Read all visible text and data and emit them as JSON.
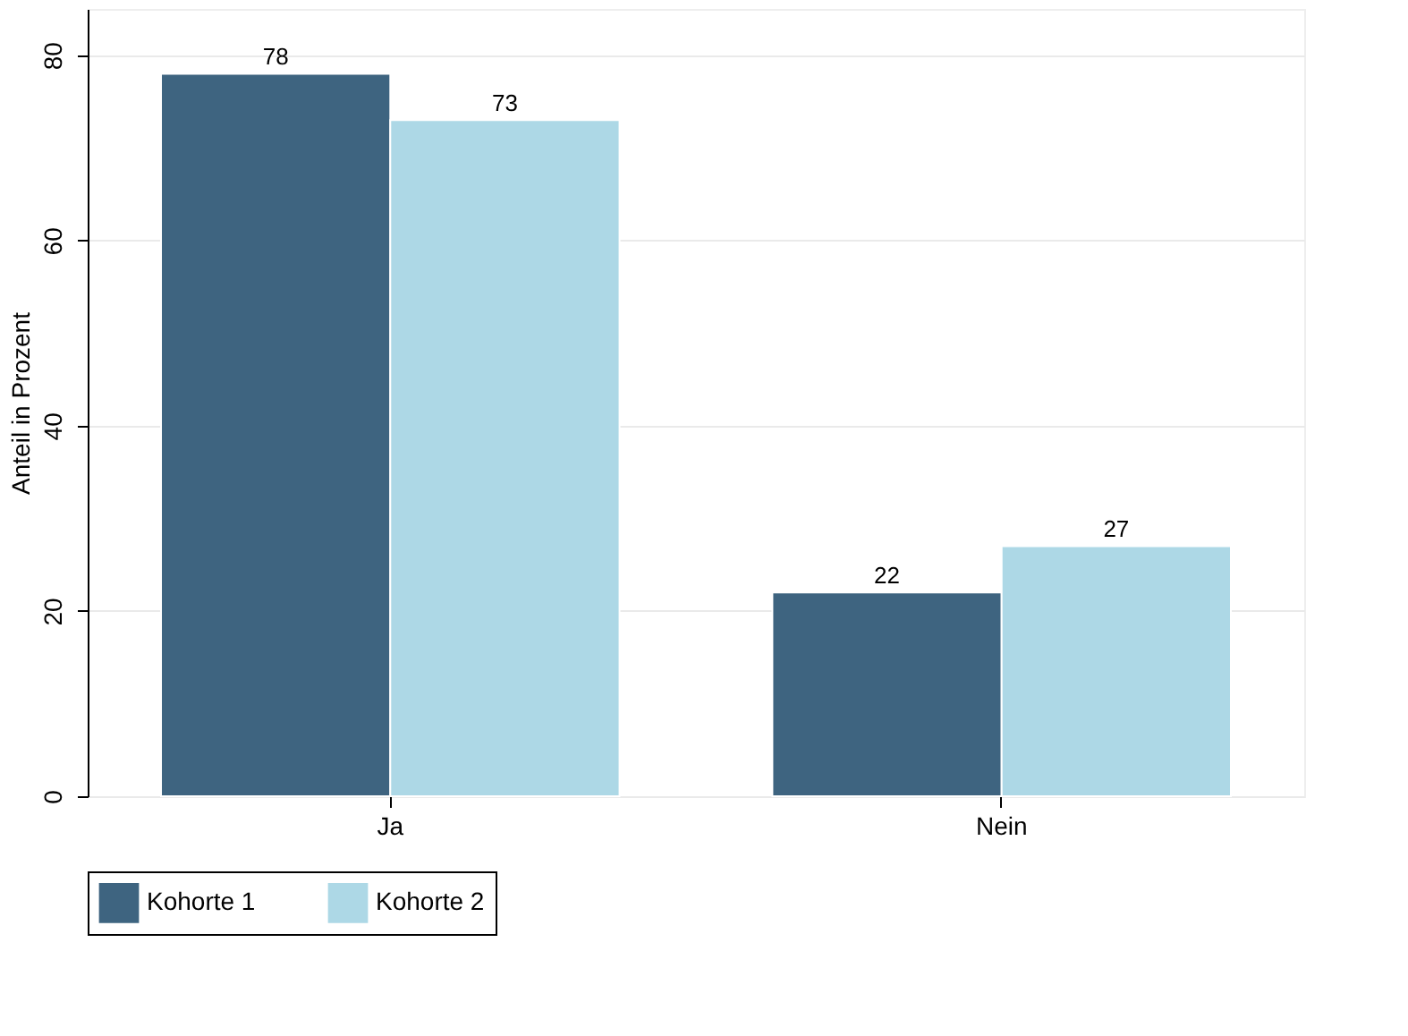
{
  "chart_data": {
    "type": "bar",
    "ylabel": "Anteil in Prozent",
    "categories": [
      "Ja",
      "Nein"
    ],
    "series": [
      {
        "name": "Kohorte 1",
        "color": "#3e6480",
        "values": [
          78,
          22
        ]
      },
      {
        "name": "Kohorte 2",
        "color": "#add8e6",
        "values": [
          73,
          27
        ]
      }
    ],
    "ylim": [
      0,
      85
    ],
    "yticks": [
      0,
      20,
      40,
      60,
      80
    ],
    "grid": "y",
    "legend": "bottom",
    "data_labels": true
  }
}
